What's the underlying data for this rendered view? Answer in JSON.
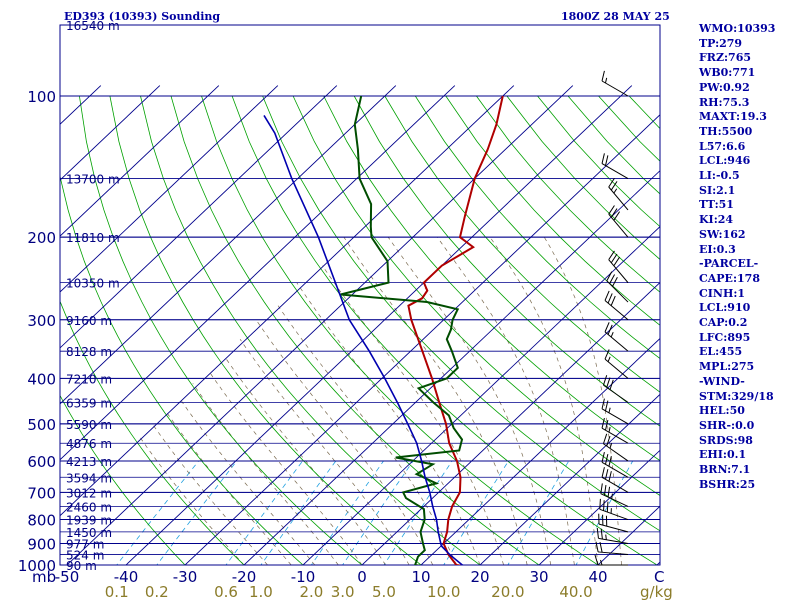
{
  "header": {
    "station_title": "ED393 (10393) Sounding",
    "valid_time": "1800Z 28 MAY 25"
  },
  "indices": [
    "WMO:10393",
    "TP:279",
    "FRZ:765",
    "WB0:771",
    "PW:0.92",
    "RH:75.3",
    "MAXT:19.3",
    "TH:5500",
    "L57:6.6",
    "LCL:946",
    "LI:-0.5",
    "SI:2.1",
    "TT:51",
    "KI:24",
    "SW:162",
    "EI:0.3",
    "-PARCEL-",
    "CAPE:178",
    "CINH:1",
    "LCL:910",
    "CAP:0.2",
    "LFC:895",
    "EL:455",
    "MPL:275",
    "-WIND-",
    "STM:329/18",
    "HEL:50",
    "SHR-:0.0",
    "SRDS:98",
    "EHI:0.1",
    "BRN:7.1",
    "BSHR:25"
  ],
  "colors": {
    "isobar": "#00008b",
    "isotherm": "#00008b",
    "dry_adiabat": "#00a000",
    "moist_adiabat": "#7a6a4f",
    "mixing_ratio": "#20a0e0",
    "temperature": "#b00000",
    "dewpoint": "#004d00",
    "parcel": "#0000b0",
    "wind_barb": "#000000",
    "text": "#0000a0"
  },
  "chart_data": {
    "type": "skew-t log-p sounding",
    "x_axis_label": "C",
    "pressure_unit_label": "mb",
    "mixing_ratio_unit_label": "g/kg",
    "pressure_levels": [
      100,
      200,
      300,
      400,
      500,
      600,
      700,
      800,
      900,
      1000
    ],
    "pressure_tick_labels": [
      "100",
      "200",
      "300",
      "400",
      "500",
      "600",
      "700",
      "800",
      "900",
      "1000"
    ],
    "temperature_ticks": [
      -50,
      -40,
      -30,
      -20,
      -10,
      0,
      10,
      20,
      30,
      40
    ],
    "temperature_tick_labels": [
      "-50",
      "-40",
      "-30",
      "-20",
      "-10",
      "0",
      "10",
      "20",
      "30",
      "40"
    ],
    "mixing_ratio_ticks": [
      0.1,
      0.2,
      0.6,
      1.0,
      2.0,
      3.0,
      5.0,
      10.0,
      20.0,
      40.0
    ],
    "mixing_ratio_tick_labels": [
      "0.1",
      "0.2",
      "0.6",
      "1.0",
      "2.0",
      "3.0",
      "5.0",
      "10.0",
      "20.0",
      "40.0"
    ],
    "heights": [
      {
        "p": 150,
        "label": "13700 m"
      },
      {
        "p": 200,
        "label": "11810 m"
      },
      {
        "p": 250,
        "label": "10350 m"
      },
      {
        "p": 300,
        "label": "9160 m"
      },
      {
        "p": 350,
        "label": "8128 m"
      },
      {
        "p": 400,
        "label": "7210 m"
      },
      {
        "p": 450,
        "label": "6359 m"
      },
      {
        "p": 500,
        "label": "5590 m"
      },
      {
        "p": 550,
        "label": "4876 m"
      },
      {
        "p": 600,
        "label": "4213 m"
      },
      {
        "p": 650,
        "label": "3594 m"
      },
      {
        "p": 700,
        "label": "3012 m"
      },
      {
        "p": 750,
        "label": "2460 m"
      },
      {
        "p": 800,
        "label": "1939 m"
      },
      {
        "p": 850,
        "label": "1450 m"
      },
      {
        "p": 900,
        "label": "977 m"
      },
      {
        "p": 950,
        "label": "524 m"
      },
      {
        "p": 1000,
        "label": "90 m"
      }
    ],
    "top_height_label": "16540 m",
    "temperature_profile": [
      {
        "p": 1010,
        "t": 18.5
      },
      {
        "p": 1000,
        "t": 16.0
      },
      {
        "p": 950,
        "t": 12.8
      },
      {
        "p": 900,
        "t": 10.0
      },
      {
        "p": 850,
        "t": 8.5
      },
      {
        "p": 800,
        "t": 6.5
      },
      {
        "p": 750,
        "t": 4.8
      },
      {
        "p": 700,
        "t": 3.6
      },
      {
        "p": 650,
        "t": 1.0
      },
      {
        "p": 600,
        "t": -2.5
      },
      {
        "p": 550,
        "t": -7.0
      },
      {
        "p": 500,
        "t": -11.0
      },
      {
        "p": 450,
        "t": -16.0
      },
      {
        "p": 400,
        "t": -21.5
      },
      {
        "p": 350,
        "t": -28.0
      },
      {
        "p": 300,
        "t": -35.5
      },
      {
        "p": 280,
        "t": -38.5
      },
      {
        "p": 270,
        "t": -37.5
      },
      {
        "p": 260,
        "t": -38.0
      },
      {
        "p": 250,
        "t": -40.0
      },
      {
        "p": 230,
        "t": -40.0
      },
      {
        "p": 210,
        "t": -38.0
      },
      {
        "p": 200,
        "t": -42.0
      },
      {
        "p": 180,
        "t": -45.0
      },
      {
        "p": 150,
        "t": -50.0
      },
      {
        "p": 130,
        "t": -53.0
      },
      {
        "p": 115,
        "t": -56.0
      },
      {
        "p": 100,
        "t": -60.0
      }
    ],
    "dewpoint_profile": [
      {
        "p": 1010,
        "td": 11.5
      },
      {
        "p": 1000,
        "td": 9.0
      },
      {
        "p": 960,
        "td": 8.0
      },
      {
        "p": 930,
        "td": 8.0
      },
      {
        "p": 900,
        "td": 6.5
      },
      {
        "p": 850,
        "td": 4.0
      },
      {
        "p": 800,
        "td": 2.5
      },
      {
        "p": 760,
        "td": 0.5
      },
      {
        "p": 720,
        "td": -4.5
      },
      {
        "p": 700,
        "td": -6.0
      },
      {
        "p": 670,
        "td": -2.0
      },
      {
        "p": 640,
        "td": -7.0
      },
      {
        "p": 610,
        "td": -6.0
      },
      {
        "p": 590,
        "td": -13.5
      },
      {
        "p": 570,
        "td": -4.0
      },
      {
        "p": 540,
        "td": -5.5
      },
      {
        "p": 510,
        "td": -9.0
      },
      {
        "p": 480,
        "td": -12.0
      },
      {
        "p": 450,
        "td": -17.0
      },
      {
        "p": 420,
        "td": -22.0
      },
      {
        "p": 400,
        "td": -19.0
      },
      {
        "p": 380,
        "td": -19.0
      },
      {
        "p": 350,
        "td": -23.0
      },
      {
        "p": 330,
        "td": -26.0
      },
      {
        "p": 315,
        "td": -27.0
      },
      {
        "p": 300,
        "td": -28.5
      },
      {
        "p": 285,
        "td": -29.5
      },
      {
        "p": 275,
        "td": -36.0
      },
      {
        "p": 265,
        "td": -52.0
      },
      {
        "p": 250,
        "td": -46.0
      },
      {
        "p": 225,
        "td": -50.0
      },
      {
        "p": 200,
        "td": -57.0
      },
      {
        "p": 190,
        "td": -59.0
      },
      {
        "p": 170,
        "td": -63.0
      },
      {
        "p": 150,
        "td": -69.5
      },
      {
        "p": 130,
        "td": -75.0
      },
      {
        "p": 115,
        "td": -80.0
      },
      {
        "p": 100,
        "td": -84.0
      }
    ],
    "parcel_profile": [
      {
        "p": 1010,
        "t": 18.5
      },
      {
        "p": 1000,
        "t": 17.0
      },
      {
        "p": 950,
        "t": 13.0
      },
      {
        "p": 910,
        "t": 10.0
      },
      {
        "p": 850,
        "t": 7.0
      },
      {
        "p": 800,
        "t": 4.5
      },
      {
        "p": 750,
        "t": 1.5
      },
      {
        "p": 700,
        "t": -1.5
      },
      {
        "p": 650,
        "t": -5.0
      },
      {
        "p": 600,
        "t": -8.5
      },
      {
        "p": 550,
        "t": -12.5
      },
      {
        "p": 500,
        "t": -17.5
      },
      {
        "p": 455,
        "t": -22.5
      },
      {
        "p": 400,
        "t": -29.5
      },
      {
        "p": 350,
        "t": -37.0
      },
      {
        "p": 300,
        "t": -46.0
      },
      {
        "p": 250,
        "t": -55.0
      },
      {
        "p": 200,
        "t": -66.0
      },
      {
        "p": 150,
        "t": -81.0
      },
      {
        "p": 120,
        "t": -92.0
      },
      {
        "p": 110,
        "t": -97.0
      }
    ],
    "wind_barbs": [
      {
        "p": 1000,
        "dir": 270,
        "kt": 15
      },
      {
        "p": 950,
        "dir": 275,
        "kt": 20
      },
      {
        "p": 900,
        "dir": 280,
        "kt": 25
      },
      {
        "p": 850,
        "dir": 285,
        "kt": 30
      },
      {
        "p": 800,
        "dir": 290,
        "kt": 35
      },
      {
        "p": 750,
        "dir": 295,
        "kt": 35
      },
      {
        "p": 700,
        "dir": 300,
        "kt": 30
      },
      {
        "p": 650,
        "dir": 300,
        "kt": 30
      },
      {
        "p": 600,
        "dir": 305,
        "kt": 25
      },
      {
        "p": 550,
        "dir": 300,
        "kt": 25
      },
      {
        "p": 500,
        "dir": 300,
        "kt": 25
      },
      {
        "p": 450,
        "dir": 305,
        "kt": 30
      },
      {
        "p": 400,
        "dir": 310,
        "kt": 15
      },
      {
        "p": 350,
        "dir": 310,
        "kt": 25
      },
      {
        "p": 300,
        "dir": 310,
        "kt": 30
      },
      {
        "p": 275,
        "dir": 315,
        "kt": 30
      },
      {
        "p": 250,
        "dir": 320,
        "kt": 30
      },
      {
        "p": 200,
        "dir": 320,
        "kt": 30
      },
      {
        "p": 175,
        "dir": 320,
        "kt": 25
      },
      {
        "p": 150,
        "dir": 300,
        "kt": 20
      },
      {
        "p": 100,
        "dir": 300,
        "kt": 15
      }
    ]
  }
}
